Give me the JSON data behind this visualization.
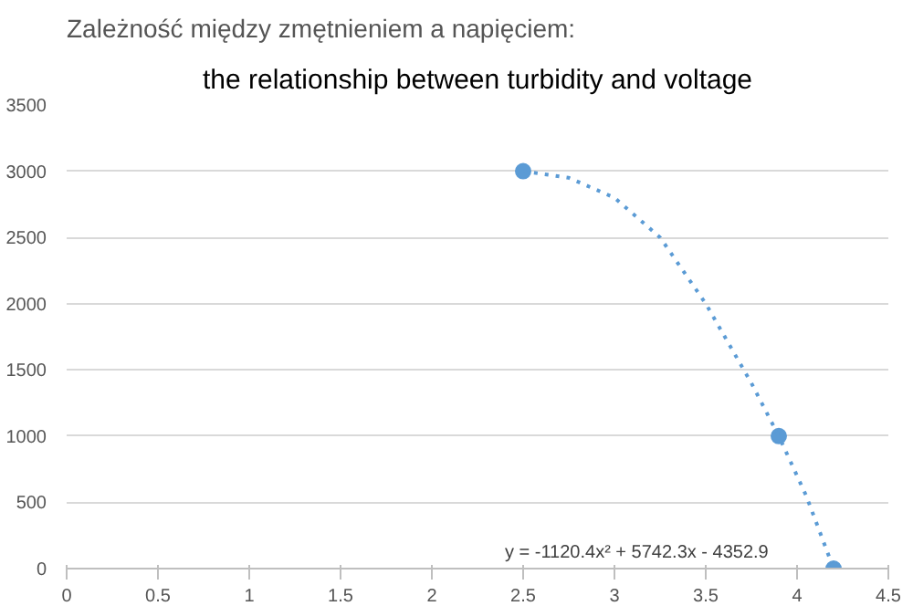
{
  "chart_data": {
    "type": "scatter",
    "title": "the relationship between turbidity and voltage",
    "annotations": [
      "Zależność między zmętnieniem a napięciem:",
      "y = -1120.4x² + 5742.3x - 4352.9"
    ],
    "x": [
      2.5,
      3.9,
      4.2
    ],
    "series": [
      {
        "color": "#5b9bd5",
        "values": [
          3000,
          1000,
          0
        ],
        "marker": "circle"
      },
      {
        "type": "line",
        "color": "#5b9bd5",
        "line_style": "dotted",
        "marker": "none",
        "x": [
          2.5,
          2.75,
          3.0,
          3.25,
          3.5,
          3.75,
          3.9,
          4.05,
          4.2
        ],
        "values": [
          3000,
          2950,
          2800,
          2500,
          2000,
          1400,
          1000,
          550,
          0
        ]
      }
    ],
    "xlim": [
      0,
      4.5
    ],
    "xticks": [
      0,
      0.5,
      1,
      1.5,
      2,
      2.5,
      3,
      3.5,
      4,
      4.5
    ],
    "ylim": [
      0,
      3500
    ],
    "yticks": [
      0,
      500,
      1000,
      1500,
      2000,
      2500,
      3000,
      3500
    ],
    "grid": "y"
  }
}
